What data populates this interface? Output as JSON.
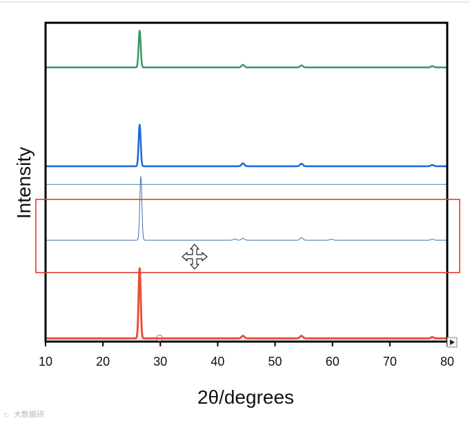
{
  "chart_data": {
    "type": "line",
    "xlabel": "2θ/degrees",
    "ylabel": "Intensity",
    "xlim": [
      10,
      80
    ],
    "xticks": [
      10,
      20,
      30,
      40,
      50,
      60,
      70,
      80
    ],
    "yticks_shown": false,
    "grid": false,
    "legend": false,
    "series": [
      {
        "color": "#3a9a6a",
        "baseline": 0.86,
        "peaks": [
          [
            26.4,
            0.115
          ],
          [
            44.4,
            0.008
          ],
          [
            54.6,
            0.006
          ],
          [
            77.4,
            0.004
          ]
        ]
      },
      {
        "color": "#1f6bd6",
        "baseline": 0.55,
        "peaks": [
          [
            26.4,
            0.13
          ],
          [
            44.4,
            0.009
          ],
          [
            54.6,
            0.008
          ],
          [
            77.4,
            0.004
          ]
        ]
      },
      {
        "color": "#4a78b0",
        "baseline": 0.493,
        "peaks": []
      },
      {
        "color": "#3f6fb0",
        "baseline": 0.318,
        "peaks": [
          [
            26.6,
            0.2
          ],
          [
            43.0,
            0.004
          ],
          [
            44.4,
            0.006
          ],
          [
            54.6,
            0.008
          ],
          [
            59.8,
            0.003
          ],
          [
            77.4,
            0.003
          ]
        ]
      },
      {
        "color": "#e8503a",
        "baseline": 0.01,
        "peaks": [
          [
            26.4,
            0.22
          ],
          [
            44.4,
            0.008
          ],
          [
            54.6,
            0.008
          ],
          [
            77.4,
            0.004
          ]
        ]
      }
    ]
  },
  "ui": {
    "selection_box_color": "#e03a2c",
    "cursor_icon": "move-cursor-icon",
    "scroll_arrow_icon": "triangle-right-icon",
    "watermark": "大数据研"
  }
}
